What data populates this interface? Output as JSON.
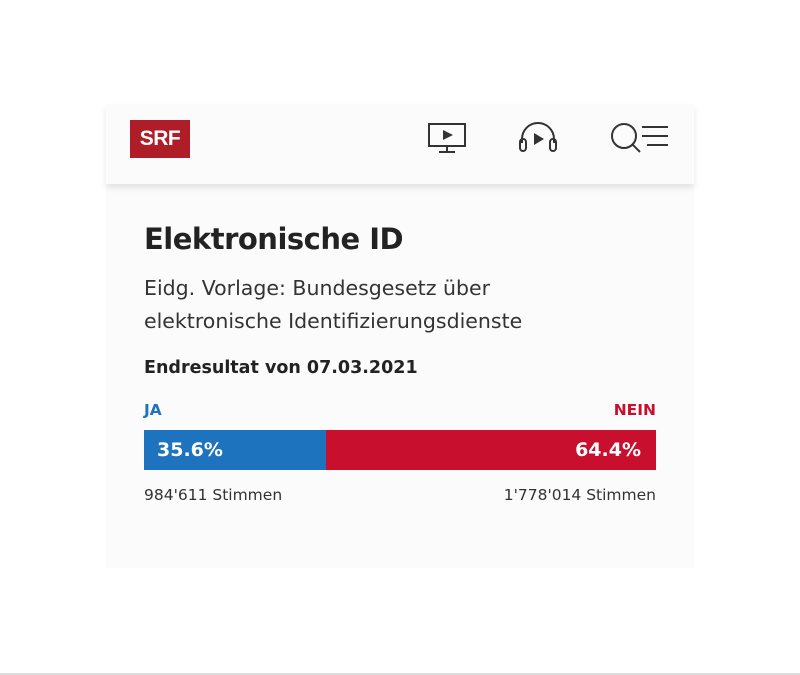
{
  "header": {
    "logo_text": "SRF",
    "icons": [
      "tv-play-icon",
      "headphones-play-icon",
      "search-menu-icon"
    ]
  },
  "vote": {
    "title": "Elektronische ID",
    "subtitle": "Eidg. Vorlage: Bundesgesetz über elektronische Identifizierungsdienste",
    "result_date": "Endresultat von 07.03.2021",
    "ja_label": "JA",
    "nein_label": "NEIN",
    "ja_percent_text": "35.6%",
    "nein_percent_text": "64.4%",
    "ja_percent": 35.6,
    "nein_percent": 64.4,
    "ja_votes": "984'611 Stimmen",
    "nein_votes": "1'778'014 Stimmen"
  },
  "colors": {
    "brand": "#af1e28",
    "ja": "#1e73be",
    "nein": "#c8102e"
  }
}
